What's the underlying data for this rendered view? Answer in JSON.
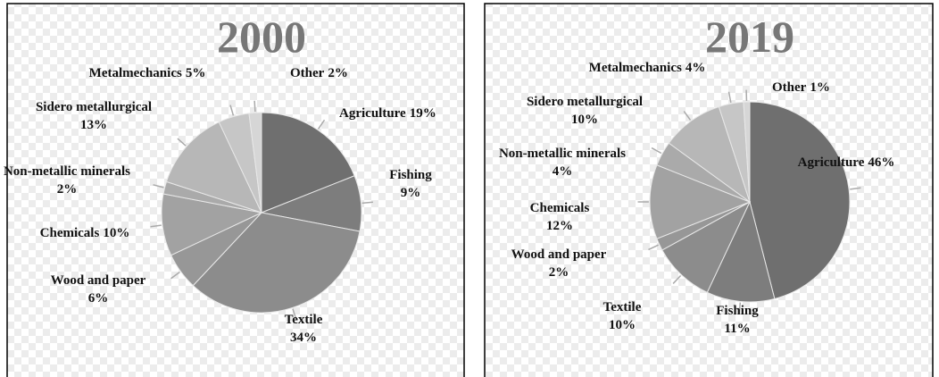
{
  "chart_data": [
    {
      "type": "pie",
      "title": "2000",
      "categories": [
        "Agriculture",
        "Fishing",
        "Textile",
        "Wood and paper",
        "Chemicals",
        "Non-metallic minerals",
        "Sidero metallurgical",
        "Metalmechanics",
        "Other"
      ],
      "values": [
        19,
        9,
        34,
        6,
        10,
        2,
        13,
        5,
        2
      ],
      "value_labels": [
        "19%",
        "9%",
        "34%",
        "6%",
        "10%",
        "2%",
        "13%",
        "5%",
        "2%"
      ],
      "colors": [
        "#6f6f6f",
        "#7d7d7d",
        "#8c8c8c",
        "#979797",
        "#a2a2a2",
        "#aaaaaa",
        "#b7b7b7",
        "#c6c6c6",
        "#d6d6d6"
      ]
    },
    {
      "type": "pie",
      "title": "2019",
      "categories": [
        "Agriculture",
        "Fishing",
        "Textile",
        "Wood and paper",
        "Chemicals",
        "Non-metallic minerals",
        "Sidero metallurgical",
        "Metalmechanics",
        "Other"
      ],
      "values": [
        46,
        11,
        10,
        2,
        12,
        4,
        10,
        4,
        1
      ],
      "value_labels": [
        "46%",
        "11%",
        "10%",
        "2%",
        "12%",
        "4%",
        "10%",
        "4%",
        "1%"
      ],
      "colors": [
        "#6f6f6f",
        "#7d7d7d",
        "#8c8c8c",
        "#979797",
        "#a2a2a2",
        "#aaaaaa",
        "#b7b7b7",
        "#c6c6c6",
        "#d6d6d6"
      ]
    }
  ]
}
